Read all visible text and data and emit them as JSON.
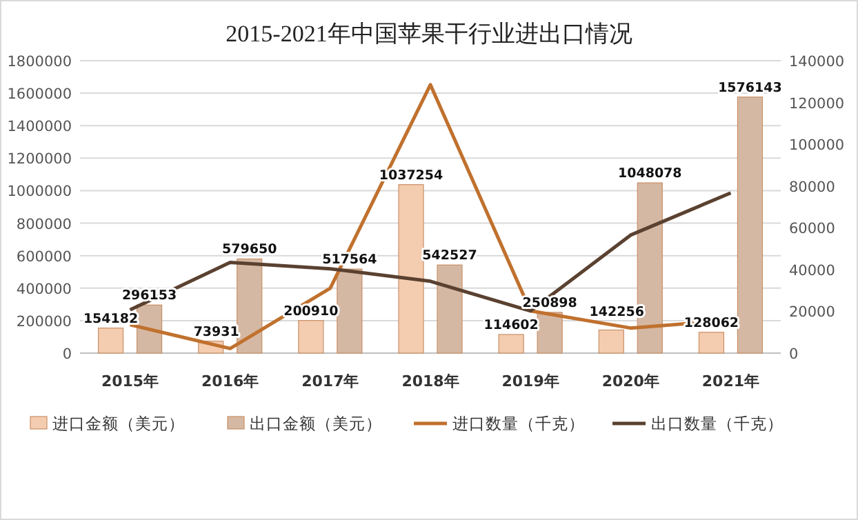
{
  "chart_data": {
    "type": "bar",
    "title": "2015-2021年中国苹果干行业进出口情况",
    "categories": [
      "2015年",
      "2016年",
      "2017年",
      "2018年",
      "2019年",
      "2020年",
      "2021年"
    ],
    "series": [
      {
        "name": "进口金额（美元）",
        "type": "bar",
        "color": "#f4ccb0",
        "values": [
          154182,
          73931,
          200910,
          1037254,
          114602,
          142256,
          128062
        ],
        "value_labels": [
          "154182",
          "73931",
          "200910",
          "1037254",
          "114602",
          "142256",
          "128062"
        ]
      },
      {
        "name": "出口金额（美元）",
        "type": "bar",
        "color": "#d5b8a3",
        "values": [
          296153,
          579650,
          517564,
          542527,
          250898,
          1048078,
          1576143
        ],
        "value_labels": [
          "296153",
          "579650",
          "517564",
          "542527",
          "250898",
          "1048078",
          "1576143"
        ]
      },
      {
        "name": "进口数量（千克）",
        "type": "line",
        "axis": "y2",
        "color": "#c0712e",
        "values": [
          13600,
          2200,
          31100,
          128500,
          20200,
          12000,
          15800
        ]
      },
      {
        "name": "出口数量（千克）",
        "type": "line",
        "axis": "y2",
        "color": "#5a4130",
        "values": [
          20700,
          43400,
          40400,
          34400,
          20200,
          56500,
          76700
        ]
      }
    ],
    "ylim": [
      0,
      1800000
    ],
    "yticks": [
      0,
      200000,
      400000,
      600000,
      800000,
      1000000,
      1200000,
      1400000,
      1600000,
      1800000
    ],
    "y2lim": [
      0,
      140000
    ],
    "y2ticks": [
      0,
      20000,
      40000,
      60000,
      80000,
      100000,
      120000,
      140000
    ],
    "grid": "y",
    "legend": "bottom",
    "marker": "none",
    "line_style": "solid"
  }
}
